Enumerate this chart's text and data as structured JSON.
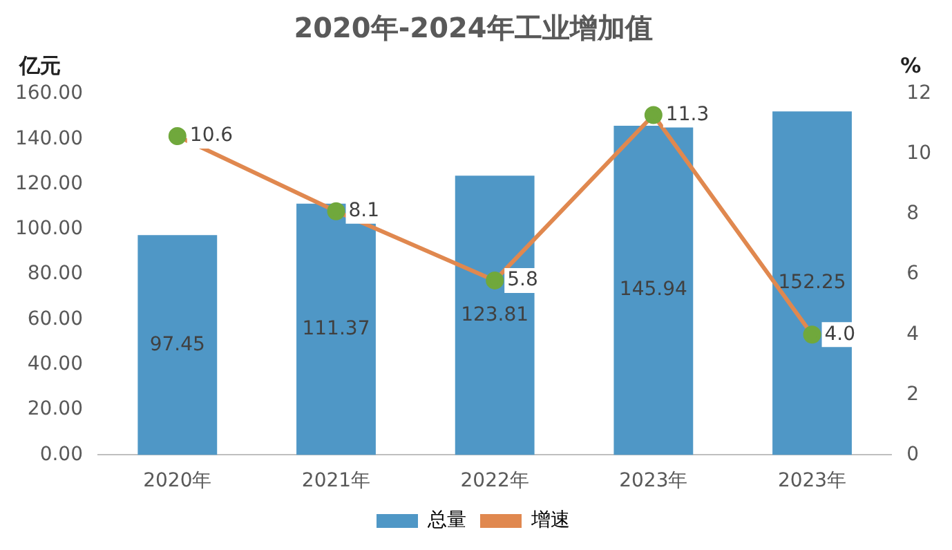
{
  "chart_data": {
    "type": "bar",
    "title": "2020年-2024年工业增加值",
    "ylabel": "亿元",
    "y2label": "%",
    "categories": [
      "2020年",
      "2021年",
      "2022年",
      "2023年",
      "2023年"
    ],
    "series": [
      {
        "name": "总量",
        "color": "#4f97c6",
        "values": [
          97.45,
          111.37,
          123.81,
          145.94,
          152.25
        ],
        "value_labels": [
          "97.45",
          "111.37",
          "123.81",
          "145.94",
          "152.25"
        ]
      },
      {
        "name": "增速",
        "type": "line",
        "axis": "y2",
        "color": "#e0884f",
        "values": [
          10.6,
          8.1,
          5.8,
          11.3,
          4.0
        ],
        "value_labels": [
          "10.6",
          "8.1",
          "5.8",
          "11.3",
          "4.0"
        ]
      }
    ],
    "marker": "circle",
    "ylim": [
      0,
      160
    ],
    "yticks": [
      {
        "value": 0,
        "label": "0.00"
      },
      {
        "value": 20,
        "label": "20.00"
      },
      {
        "value": 40,
        "label": "40.00"
      },
      {
        "value": 60,
        "label": "60.00"
      },
      {
        "value": 80,
        "label": "80.00"
      },
      {
        "value": 100,
        "label": "100.00"
      },
      {
        "value": 120,
        "label": "120.00"
      },
      {
        "value": 140,
        "label": "140.00"
      },
      {
        "value": 160,
        "label": "160.00"
      }
    ],
    "y2lim": [
      0,
      12
    ],
    "y2ticks": [
      0,
      2,
      4,
      6,
      8,
      10,
      12
    ],
    "grid": false,
    "legend": "bottom"
  }
}
